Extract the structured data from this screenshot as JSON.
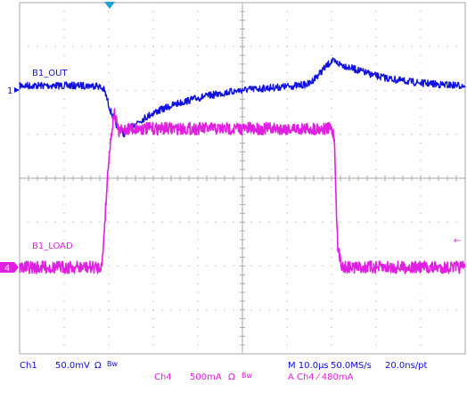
{
  "chart_data": {
    "type": "line",
    "title": "",
    "xlabel": "",
    "ylabel": "",
    "x_unit": "µs",
    "x_range": [
      0,
      100
    ],
    "grid": true,
    "colors": {
      "ch1": "#1010e0",
      "ch4": "#e020e0",
      "trigger": "#1fa0d8",
      "grid": "#aaaaaa"
    },
    "series": [
      {
        "name": "B1_OUT",
        "channel": "Ch1",
        "marker": "1",
        "color": "#1010e0",
        "unit": "mV",
        "scale_per_div": 50.0,
        "x": [
          0,
          17.5,
          19,
          20.5,
          22,
          23.5,
          26,
          30,
          35,
          40,
          45,
          50,
          55,
          60,
          62.5,
          65,
          67.5,
          70,
          75,
          80,
          85,
          90,
          95,
          100
        ],
        "y": [
          5,
          5,
          0,
          -25,
          -43,
          -50,
          -38,
          -26,
          -16,
          -9,
          -4,
          0,
          2,
          4,
          5,
          7,
          20,
          33,
          24,
          16,
          11,
          8,
          6,
          5
        ],
        "noise": 4
      },
      {
        "name": "B1_LOAD",
        "channel": "Ch4",
        "marker": "4",
        "color": "#e020e0",
        "unit": "mA",
        "scale_per_div": 500,
        "x": [
          0,
          17.5,
          18.5,
          20,
          21.2,
          22.2,
          24,
          40,
          55,
          69.8,
          70.6,
          71.4,
          72.5,
          100
        ],
        "y": [
          0,
          0,
          20,
          1250,
          1770,
          1540,
          1580,
          1580,
          1580,
          1580,
          1500,
          200,
          0,
          0
        ],
        "noise": 7
      }
    ],
    "annotations": [
      "B1_OUT",
      "B1_LOAD"
    ]
  },
  "readout": {
    "ch1": "Ch1",
    "ch1_scale": "50.0mV",
    "ch1_ohm": "Ω",
    "ch1_bw": "Bw",
    "ch4": "Ch4",
    "ch4_scale": "500mA",
    "ch4_ohm": "Ω",
    "ch4_bw": "Bw",
    "timebase": "M 10.0µs",
    "sample_rate": "50.0MS/s",
    "resolution": "20.0ns/pt",
    "trigger": "A  Ch4  ⁄  480mA"
  },
  "markers": {
    "ch1": "1",
    "ch4": "4",
    "trigger_level": "←"
  },
  "icons": {
    "trigger_position": "triangle-down-icon",
    "ch1_ground": "arrow-right-icon",
    "ch4_ground": "tag-icon",
    "trigger_level": "arrow-left-icon"
  }
}
